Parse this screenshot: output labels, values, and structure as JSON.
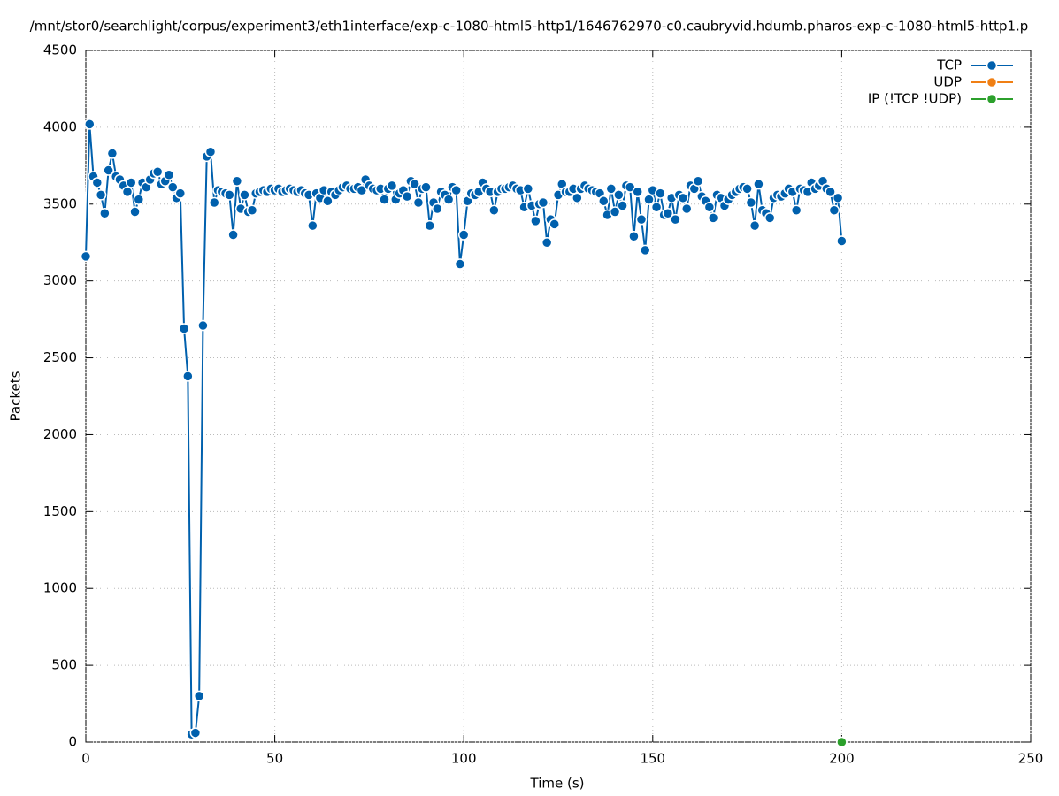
{
  "chart_data": {
    "type": "line",
    "title": "/mnt/stor0/searchlight/corpus/experiment3/eth1interface/exp-c-1080-html5-http1/1646762970-c0.caubryvid.hdumb.pharos-exp-c-1080-html5-http1.p",
    "xlabel": "Time (s)",
    "ylabel": "Packets",
    "xlim": [
      0,
      250
    ],
    "xticks": [
      0,
      50,
      100,
      150,
      200,
      250
    ],
    "ylim": [
      0,
      4500
    ],
    "yticks": [
      0,
      500,
      1000,
      1500,
      2000,
      2500,
      3000,
      3500,
      4000,
      4500
    ],
    "grid": true,
    "legend": "top-right",
    "series": [
      {
        "name": "TCP",
        "color": "#0060ad",
        "x": [
          0,
          1,
          2,
          3,
          4,
          5,
          6,
          7,
          8,
          9,
          10,
          11,
          12,
          13,
          14,
          15,
          16,
          17,
          18,
          19,
          20,
          21,
          22,
          23,
          24,
          25,
          26,
          27,
          28,
          29,
          30,
          31,
          32,
          33,
          34,
          35,
          36,
          37,
          38,
          39,
          40,
          41,
          42,
          43,
          44,
          45,
          46,
          47,
          48,
          49,
          50,
          51,
          52,
          53,
          54,
          55,
          56,
          57,
          58,
          59,
          60,
          61,
          62,
          63,
          64,
          65,
          66,
          67,
          68,
          69,
          70,
          71,
          72,
          73,
          74,
          75,
          76,
          77,
          78,
          79,
          80,
          81,
          82,
          83,
          84,
          85,
          86,
          87,
          88,
          89,
          90,
          91,
          92,
          93,
          94,
          95,
          96,
          97,
          98,
          99,
          100,
          101,
          102,
          103,
          104,
          105,
          106,
          107,
          108,
          109,
          110,
          111,
          112,
          113,
          114,
          115,
          116,
          117,
          118,
          119,
          120,
          121,
          122,
          123,
          124,
          125,
          126,
          127,
          128,
          129,
          130,
          131,
          132,
          133,
          134,
          135,
          136,
          137,
          138,
          139,
          140,
          141,
          142,
          143,
          144,
          145,
          146,
          147,
          148,
          149,
          150,
          151,
          152,
          153,
          154,
          155,
          156,
          157,
          158,
          159,
          160,
          161,
          162,
          163,
          164,
          165,
          166,
          167,
          168,
          169,
          170,
          171,
          172,
          173,
          174,
          175,
          176,
          177,
          178,
          179,
          180,
          181,
          182,
          183,
          184,
          185,
          186,
          187,
          188,
          189,
          190,
          191,
          192,
          193,
          194,
          195,
          196,
          197,
          198,
          199,
          200
        ],
        "values": [
          3160,
          4020,
          3680,
          3640,
          3560,
          3440,
          3720,
          3830,
          3680,
          3660,
          3620,
          3580,
          3640,
          3450,
          3530,
          3640,
          3610,
          3660,
          3700,
          3710,
          3630,
          3650,
          3690,
          3610,
          3540,
          3570,
          2690,
          2380,
          50,
          60,
          300,
          2710,
          3810,
          3840,
          3510,
          3590,
          3580,
          3570,
          3560,
          3300,
          3650,
          3470,
          3560,
          3450,
          3460,
          3570,
          3580,
          3590,
          3580,
          3600,
          3590,
          3600,
          3580,
          3590,
          3600,
          3590,
          3580,
          3590,
          3570,
          3560,
          3360,
          3570,
          3540,
          3590,
          3520,
          3580,
          3560,
          3590,
          3610,
          3620,
          3600,
          3600,
          3610,
          3590,
          3660,
          3620,
          3600,
          3590,
          3600,
          3530,
          3600,
          3620,
          3530,
          3570,
          3590,
          3550,
          3650,
          3630,
          3510,
          3600,
          3610,
          3360,
          3510,
          3470,
          3580,
          3560,
          3530,
          3610,
          3590,
          3110,
          3300,
          3520,
          3570,
          3560,
          3580,
          3640,
          3600,
          3580,
          3460,
          3580,
          3600,
          3600,
          3610,
          3620,
          3600,
          3590,
          3480,
          3600,
          3490,
          3390,
          3500,
          3510,
          3250,
          3400,
          3370,
          3560,
          3630,
          3580,
          3580,
          3600,
          3540,
          3600,
          3620,
          3600,
          3590,
          3580,
          3570,
          3520,
          3430,
          3600,
          3450,
          3560,
          3490,
          3620,
          3610,
          3290,
          3580,
          3400,
          3200,
          3530,
          3590,
          3480,
          3570,
          3430,
          3440,
          3540,
          3400,
          3560,
          3540,
          3470,
          3620,
          3600,
          3650,
          3550,
          3520,
          3480,
          3410,
          3560,
          3540,
          3490,
          3530,
          3560,
          3580,
          3600,
          3610,
          3600,
          3510,
          3360,
          3630,
          3460,
          3440,
          3410,
          3540,
          3560,
          3550,
          3570,
          3600,
          3580,
          3460,
          3600,
          3590,
          3580,
          3640,
          3600,
          3620,
          3650,
          3600,
          3580,
          3460,
          3540,
          3260
        ]
      },
      {
        "name": "UDP",
        "color": "#f07f14",
        "x": [
          200
        ],
        "values": [
          0
        ]
      },
      {
        "name": "IP (!TCP  !UDP)",
        "color": "#2ca02c",
        "x": [
          200
        ],
        "values": [
          0
        ]
      }
    ]
  }
}
